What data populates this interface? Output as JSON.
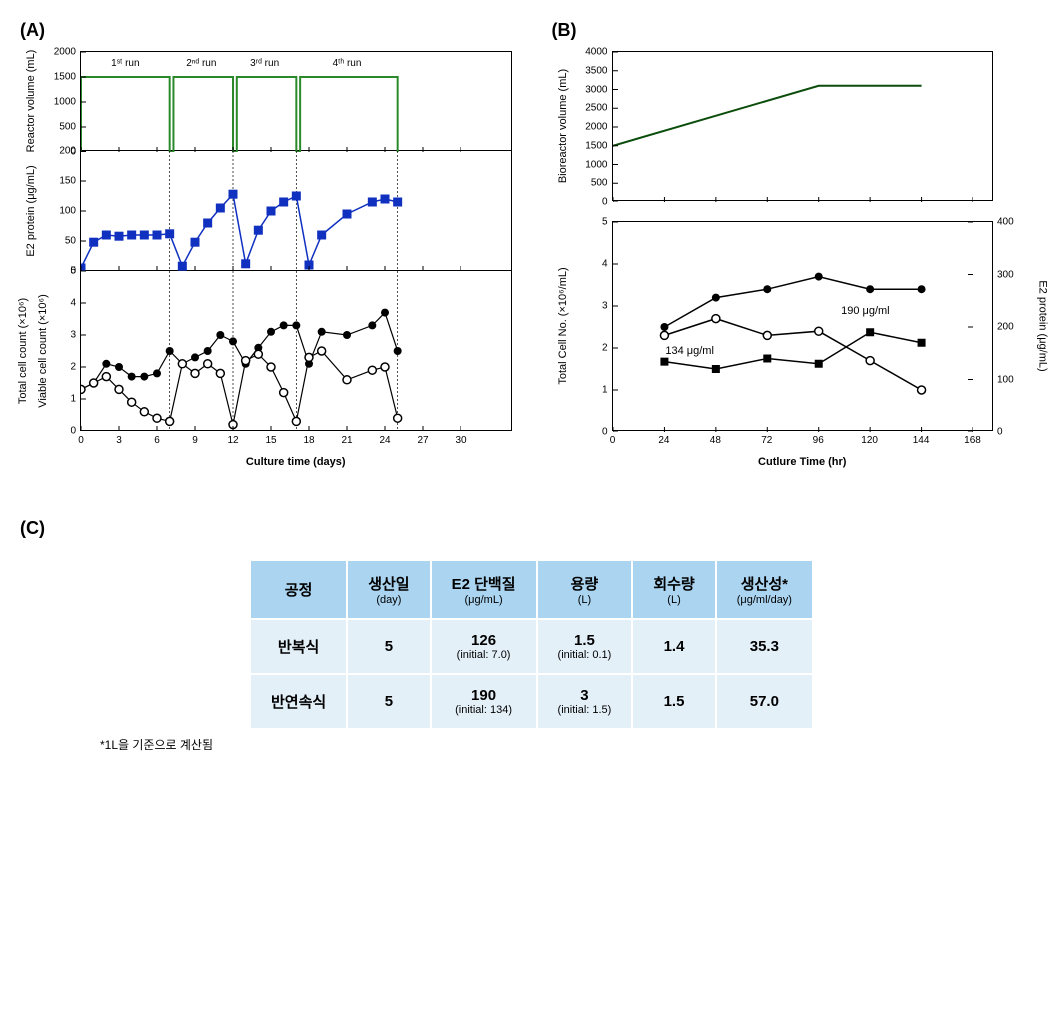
{
  "panels": {
    "a": "(A)",
    "b": "(B)",
    "c": "(C)"
  },
  "colors": {
    "green": "#2a8a2a",
    "blue": "#1030c0",
    "black": "#000000",
    "dark_green": "#0b4d0b",
    "table_header": "#aad4f0",
    "table_cell": "#e4f0f8"
  },
  "panelA": {
    "xlabel": "Culture time (days)",
    "xlim": [
      0,
      30
    ],
    "xticks": [
      0,
      3,
      6,
      9,
      12,
      15,
      18,
      21,
      24,
      27,
      30
    ],
    "run_labels": [
      "1ˢᵗ run",
      "2ⁿᵈ run",
      "3ʳᵈ run",
      "4ᵗʰ run"
    ],
    "run_x": [
      3.5,
      9.5,
      14.5,
      21
    ],
    "vlines": [
      7,
      12,
      17,
      25
    ],
    "top": {
      "ylabel": "Reactor volume (mL)",
      "ylim": [
        0,
        2000
      ],
      "yticks": [
        0,
        500,
        1000,
        1500,
        2000
      ],
      "series": {
        "x": [
          0,
          0,
          7,
          7,
          7.3,
          7.3,
          12,
          12,
          12.3,
          12.3,
          17,
          17,
          17.3,
          17.3,
          25,
          25
        ],
        "y": [
          0,
          1500,
          1500,
          0,
          0,
          1500,
          1500,
          0,
          0,
          1500,
          1500,
          0,
          0,
          1500,
          1500,
          0
        ],
        "color": "#2a8a2a"
      }
    },
    "mid": {
      "ylabel": "E2 protein (μg/mL)",
      "ylim": [
        0,
        200
      ],
      "yticks": [
        0,
        50,
        100,
        150,
        200
      ],
      "series": {
        "x": [
          0,
          1,
          2,
          3,
          4,
          5,
          6,
          7,
          8,
          9,
          10,
          11,
          12,
          13,
          14,
          15,
          16,
          17,
          18,
          19,
          21,
          23,
          24,
          25
        ],
        "y": [
          5,
          48,
          60,
          58,
          60,
          60,
          60,
          62,
          8,
          48,
          80,
          105,
          128,
          12,
          68,
          100,
          115,
          125,
          10,
          60,
          95,
          115,
          120,
          115
        ],
        "color": "#1030c0",
        "marker": "square"
      }
    },
    "bot": {
      "ylabel_total": "Total cell count (×10⁶)",
      "ylabel_viable": "Viable cell count (×10⁶)",
      "ylim": [
        0,
        5
      ],
      "yticks": [
        0,
        1,
        2,
        3,
        4,
        5
      ],
      "total": {
        "x": [
          0,
          1,
          2,
          3,
          4,
          5,
          6,
          7,
          8,
          9,
          10,
          11,
          12,
          13,
          14,
          15,
          16,
          17,
          18,
          19,
          21,
          23,
          24,
          25
        ],
        "y": [
          1.3,
          1.5,
          2.1,
          2.0,
          1.7,
          1.7,
          1.8,
          2.5,
          2.1,
          2.3,
          2.5,
          3.0,
          2.8,
          2.1,
          2.6,
          3.1,
          3.3,
          3.3,
          2.1,
          3.1,
          3.0,
          3.3,
          3.7,
          2.5
        ]
      },
      "viable": {
        "x": [
          0,
          1,
          2,
          3,
          4,
          5,
          6,
          7,
          8,
          9,
          10,
          11,
          12,
          13,
          14,
          15,
          16,
          17,
          18,
          19,
          21,
          23,
          24,
          25
        ],
        "y": [
          1.3,
          1.5,
          1.7,
          1.3,
          0.9,
          0.6,
          0.4,
          0.3,
          2.1,
          1.8,
          2.1,
          1.8,
          0.2,
          2.2,
          2.4,
          2.0,
          1.2,
          0.3,
          2.3,
          2.5,
          1.6,
          1.9,
          2.0,
          0.4
        ]
      }
    }
  },
  "panelB": {
    "xlabel": "Cutlure Time (hr)",
    "xlim": [
      0,
      168
    ],
    "xticks": [
      0,
      24,
      48,
      72,
      96,
      120,
      144,
      168
    ],
    "top": {
      "ylabel": "Bioreactor volume (mL)",
      "ylim": [
        0,
        4000
      ],
      "yticks": [
        0,
        500,
        1000,
        1500,
        2000,
        2500,
        3000,
        3500,
        4000
      ],
      "series": {
        "x": [
          0,
          96,
          144
        ],
        "y": [
          1500,
          3100,
          3100
        ],
        "color": "#0b4d0b"
      }
    },
    "bot": {
      "ylabel_left": "Total Cell No. (×10⁶/mL)",
      "ylabel_right": "E2 protein (μg/mL)",
      "ylim_l": [
        0,
        5
      ],
      "yticks_l": [
        0,
        1,
        2,
        3,
        4,
        5
      ],
      "ylim_r": [
        0,
        400
      ],
      "yticks_r": [
        0,
        100,
        200,
        300,
        400
      ],
      "total": {
        "x": [
          24,
          48,
          72,
          96,
          120,
          144
        ],
        "y": [
          2.5,
          3.2,
          3.4,
          3.7,
          3.4,
          3.4
        ]
      },
      "viable": {
        "x": [
          24,
          48,
          72,
          96,
          120,
          144
        ],
        "y": [
          2.3,
          2.7,
          2.3,
          2.4,
          1.7,
          1.0
        ]
      },
      "e2": {
        "x": [
          24,
          48,
          72,
          96,
          120,
          144
        ],
        "y": [
          134,
          120,
          140,
          130,
          190,
          170
        ]
      },
      "anno": [
        {
          "x": 36,
          "y_r": 155,
          "text": "134 μg/ml"
        },
        {
          "x": 118,
          "y_r": 230,
          "text": "190 μg/ml"
        }
      ]
    }
  },
  "table": {
    "headers": [
      {
        "main": "공정",
        "sub": ""
      },
      {
        "main": "생산일",
        "sub": "(day)"
      },
      {
        "main": "E2 단백질",
        "sub": "(μg/mL)"
      },
      {
        "main": "용량",
        "sub": "(L)"
      },
      {
        "main": "회수량",
        "sub": "(L)"
      },
      {
        "main": "생산성*",
        "sub": "(μg/ml/day)"
      }
    ],
    "rows": [
      {
        "name": "반복식",
        "day": "5",
        "e2": "126",
        "e2_sub": "(initial: 7.0)",
        "vol": "1.5",
        "vol_sub": "(initial: 0.1)",
        "rec": "1.4",
        "prod": "35.3"
      },
      {
        "name": "반연속식",
        "day": "5",
        "e2": "190",
        "e2_sub": "(initial: 134)",
        "vol": "3",
        "vol_sub": "(initial: 1.5)",
        "rec": "1.5",
        "prod": "57.0"
      }
    ],
    "footnote": "*1L을 기준으로 계산됨"
  }
}
